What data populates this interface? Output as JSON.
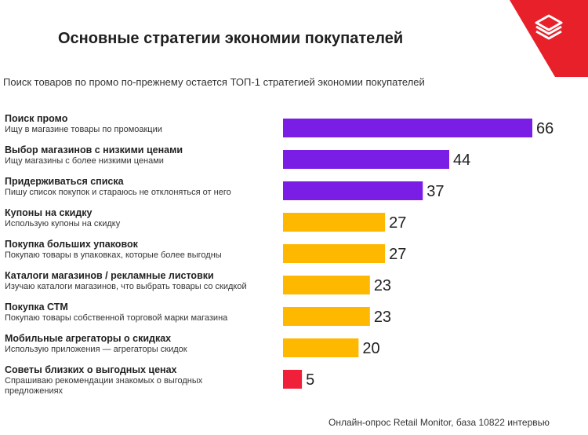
{
  "header": {
    "title": "Основные стратегии экономии покупателей",
    "subtitle": "Поиск товаров по промо по-прежнему остается  ТОП-1 стратегией экономии покупателей",
    "source": "Онлайн-опрос Retail Monitor, база 10822 интервью"
  },
  "logo": {
    "icon": "stacked-layers-logo-icon",
    "background_color": "#e8202a"
  },
  "chart_data": {
    "type": "bar",
    "orientation": "horizontal",
    "title": "Основные стратегии экономии покупателей",
    "subtitle": "Поиск товаров по промо по-прежнему остается  ТОП-1 стратегией экономии покупателей",
    "xlim": [
      0,
      66
    ],
    "grid": false,
    "legend": "none",
    "data_labels": true,
    "categories": [
      {
        "name": "Поиск промо",
        "description": [
          "Ищу в магазине товары по промоакции"
        ],
        "value": 66,
        "color": "#7a1ee6"
      },
      {
        "name": "Выбор магазинов с низкими ценами",
        "description": [
          "Ищу магазины с более низкими ценами"
        ],
        "value": 44,
        "color": "#7a1ee6"
      },
      {
        "name": "Придерживаться списка",
        "description": [
          "Пишу список покупок и стараюсь не отклоняться от него"
        ],
        "value": 37,
        "color": "#7a1ee6"
      },
      {
        "name": "Купоны на скидку",
        "description": [
          "Использую купоны на скидку"
        ],
        "value": 27,
        "color": "#ffb800"
      },
      {
        "name": "Покупка больших упаковок",
        "description": [
          "Покупаю товары в упаковках, которые более выгодны"
        ],
        "value": 27,
        "color": "#ffb800"
      },
      {
        "name": "Каталоги магазинов / рекламные листовки",
        "description": [
          "Изучаю каталоги магазинов, что выбрать товары со скидкой"
        ],
        "value": 23,
        "color": "#ffb800"
      },
      {
        "name": "Покупка СТМ",
        "description": [
          "Покупаю товары собственной торговой марки магазина"
        ],
        "value": 23,
        "color": "#ffb800"
      },
      {
        "name": "Мобильные агрегаторы о скидках",
        "description": [
          "Использую приложения — агрегаторы скидок"
        ],
        "value": 20,
        "color": "#ffb800"
      },
      {
        "name": "Советы близких о выгодных ценах",
        "description": [
          "Спрашиваю рекомендации знакомых о выгодных",
          "предложениях"
        ],
        "value": 5,
        "color": "#f0203a"
      }
    ]
  }
}
